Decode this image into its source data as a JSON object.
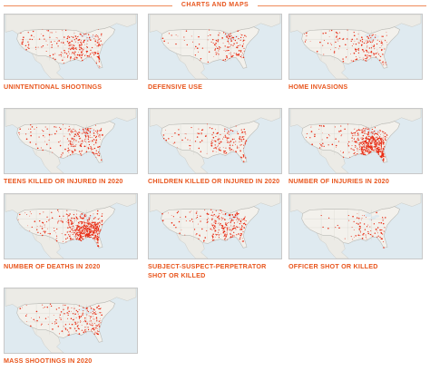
{
  "header": {
    "title": "CHARTS AND MAPS"
  },
  "colors": {
    "accent": "#e8561e",
    "dots": "#e82a12",
    "land": "#f3f1ec",
    "water": "#dfeaf0"
  },
  "maps": [
    {
      "id": "unintentional",
      "caption": "UNINTENTIONAL SHOOTINGS",
      "density": 260
    },
    {
      "id": "defensive",
      "caption": "DEFENSIVE USE",
      "density": 150
    },
    {
      "id": "home",
      "caption": "HOME INVASIONS",
      "density": 180
    },
    {
      "id": "teens",
      "caption": "TEENS KILLED OR INJURED IN 2020",
      "density": 230
    },
    {
      "id": "children",
      "caption": "CHILDREN KILLED OR INJURED IN 2020",
      "density": 170
    },
    {
      "id": "injuries",
      "caption": "NUMBER OF INJURIES IN 2020",
      "density": 520
    },
    {
      "id": "deaths",
      "caption": "NUMBER OF DEATHS IN 2020",
      "density": 540
    },
    {
      "id": "subject",
      "caption": "SUBJECT-SUSPECT-PERPETRATOR SHOT OR KILLED",
      "density": 260
    },
    {
      "id": "officer",
      "caption": "OFFICER SHOT OR KILLED",
      "density": 90
    },
    {
      "id": "mass",
      "caption": "MASS SHOOTINGS IN 2020",
      "density": 200
    }
  ]
}
